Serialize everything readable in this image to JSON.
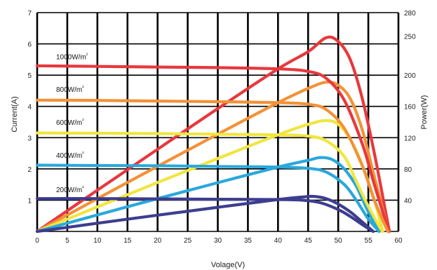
{
  "chart_data": {
    "type": "line",
    "title": "",
    "xlabel": "Volage(V)",
    "ylabel_left": "Current(A)",
    "ylabel_right": "Power(W)",
    "xlim": [
      0,
      60
    ],
    "ylim_left": [
      0,
      7
    ],
    "ylim_right": [
      0,
      280
    ],
    "x_ticks": [
      "0",
      "5",
      "10",
      "15",
      "20",
      "25",
      "30",
      "35",
      "40",
      "45",
      "50",
      "55",
      "60"
    ],
    "y_left_ticks": [
      "1",
      "2",
      "3",
      "4",
      "5",
      "6",
      "7"
    ],
    "y_right_ticks": [
      "40",
      "80",
      "120",
      "160",
      "200",
      "250",
      "280"
    ],
    "grid": true,
    "series": [
      {
        "name": "1000W/m²",
        "label_text": "1000W/m",
        "label_sup": "²",
        "color": "#e8383d",
        "label_y": 5.6,
        "current": [
          [
            0,
            5.3
          ],
          [
            10,
            5.28
          ],
          [
            20,
            5.26
          ],
          [
            30,
            5.24
          ],
          [
            40,
            5.2
          ],
          [
            45,
            5.12
          ],
          [
            48,
            4.9
          ],
          [
            51,
            4.2
          ],
          [
            54,
            2.8
          ],
          [
            56,
            1.5
          ],
          [
            58,
            0.25
          ],
          [
            58.5,
            0
          ]
        ],
        "power": [
          [
            0,
            0
          ],
          [
            10,
            52.8
          ],
          [
            20,
            105.2
          ],
          [
            30,
            157.2
          ],
          [
            40,
            208
          ],
          [
            45,
            230
          ],
          [
            48,
            248
          ],
          [
            50,
            243
          ],
          [
            52,
            220
          ],
          [
            54,
            170
          ],
          [
            56,
            100
          ],
          [
            58,
            20
          ],
          [
            58.5,
            0
          ]
        ]
      },
      {
        "name": "800W/m²",
        "label_text": "800W/m",
        "label_sup": "²",
        "color": "#f29237",
        "label_y": 4.55,
        "current": [
          [
            0,
            4.2
          ],
          [
            10,
            4.19
          ],
          [
            20,
            4.17
          ],
          [
            30,
            4.15
          ],
          [
            40,
            4.12
          ],
          [
            45,
            4.07
          ],
          [
            48,
            3.9
          ],
          [
            51,
            3.3
          ],
          [
            54,
            2.1
          ],
          [
            56,
            1.0
          ],
          [
            58,
            0.1
          ],
          [
            58.3,
            0
          ]
        ],
        "power": [
          [
            0,
            0
          ],
          [
            10,
            41.9
          ],
          [
            20,
            83.4
          ],
          [
            30,
            124.5
          ],
          [
            40,
            164.8
          ],
          [
            45,
            183
          ],
          [
            48,
            191
          ],
          [
            50,
            187
          ],
          [
            52,
            170
          ],
          [
            54,
            130
          ],
          [
            56,
            70
          ],
          [
            58,
            10
          ],
          [
            58.3,
            0
          ]
        ]
      },
      {
        "name": "600W/m²",
        "label_text": "600W/m",
        "label_sup": "²",
        "color": "#f0e640",
        "label_y": 3.5,
        "current": [
          [
            0,
            3.15
          ],
          [
            10,
            3.14
          ],
          [
            20,
            3.13
          ],
          [
            30,
            3.11
          ],
          [
            40,
            3.09
          ],
          [
            45,
            3.05
          ],
          [
            48,
            2.9
          ],
          [
            51,
            2.4
          ],
          [
            53,
            1.6
          ],
          [
            55,
            0.8
          ],
          [
            57,
            0.1
          ],
          [
            57.4,
            0
          ]
        ],
        "power": [
          [
            0,
            0
          ],
          [
            10,
            31.4
          ],
          [
            20,
            62.6
          ],
          [
            30,
            93.3
          ],
          [
            40,
            123.6
          ],
          [
            45,
            137
          ],
          [
            48,
            142
          ],
          [
            50,
            137
          ],
          [
            52,
            118
          ],
          [
            54,
            85
          ],
          [
            56,
            40
          ],
          [
            57.4,
            0
          ]
        ]
      },
      {
        "name": "400W/m²",
        "label_text": "400W/m",
        "label_sup": "²",
        "color": "#2aa8dc",
        "label_y": 2.45,
        "current": [
          [
            0,
            2.12
          ],
          [
            10,
            2.11
          ],
          [
            20,
            2.1
          ],
          [
            30,
            2.08
          ],
          [
            40,
            2.06
          ],
          [
            45,
            2.02
          ],
          [
            48,
            1.9
          ],
          [
            51,
            1.5
          ],
          [
            53,
            1.0
          ],
          [
            55,
            0.4
          ],
          [
            56.8,
            0
          ]
        ],
        "power": [
          [
            0,
            0
          ],
          [
            10,
            21.1
          ],
          [
            20,
            42
          ],
          [
            30,
            62.4
          ],
          [
            40,
            82.4
          ],
          [
            45,
            91
          ],
          [
            47,
            94.5
          ],
          [
            49,
            92
          ],
          [
            51,
            80
          ],
          [
            53,
            58
          ],
          [
            55,
            25
          ],
          [
            56.8,
            0
          ]
        ]
      },
      {
        "name": "200W/m²",
        "label_text": "200W/m",
        "label_sup": "²",
        "color": "#3d3d8f",
        "label_y": 1.35,
        "current": [
          [
            0,
            1.05
          ],
          [
            10,
            1.05
          ],
          [
            20,
            1.04
          ],
          [
            30,
            1.03
          ],
          [
            40,
            1.02
          ],
          [
            44,
            1.0
          ],
          [
            47,
            0.92
          ],
          [
            50,
            0.7
          ],
          [
            52,
            0.48
          ],
          [
            54,
            0.22
          ],
          [
            55.8,
            0
          ]
        ],
        "power": [
          [
            0,
            0
          ],
          [
            10,
            10.5
          ],
          [
            20,
            20.8
          ],
          [
            30,
            30.9
          ],
          [
            40,
            40.8
          ],
          [
            44,
            44
          ],
          [
            46,
            44.8
          ],
          [
            48,
            42
          ],
          [
            50,
            35
          ],
          [
            52,
            25
          ],
          [
            54,
            12
          ],
          [
            55.8,
            0
          ]
        ]
      }
    ]
  }
}
